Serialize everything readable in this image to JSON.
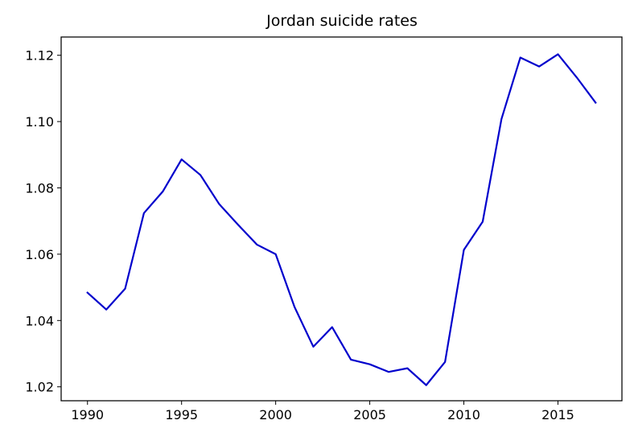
{
  "chart_data": {
    "type": "line",
    "title": "Jordan suicide rates",
    "xlabel": "",
    "ylabel": "",
    "xlim": [
      1988.6,
      2018.4
    ],
    "ylim": [
      1.0158,
      1.1255
    ],
    "x_ticks": [
      1990,
      1995,
      2000,
      2005,
      2010,
      2015
    ],
    "y_ticks": [
      1.02,
      1.04,
      1.06,
      1.08,
      1.1,
      1.12
    ],
    "y_tick_labels": [
      "1.02",
      "1.04",
      "1.06",
      "1.08",
      "1.10",
      "1.12"
    ],
    "grid": false,
    "legend": "none",
    "series": [
      {
        "color": "#0000cc",
        "x": [
          1990,
          1991,
          1992,
          1993,
          1994,
          1995,
          1996,
          1997,
          1998,
          1999,
          2000,
          2001,
          2002,
          2003,
          2004,
          2005,
          2006,
          2007,
          2008,
          2009,
          2010,
          2011,
          2012,
          2013,
          2014,
          2015,
          2016,
          2017
        ],
        "values": [
          1.0484,
          1.0433,
          1.0496,
          1.0724,
          1.0789,
          1.0886,
          1.0839,
          1.0751,
          1.0689,
          1.0629,
          1.06,
          1.0441,
          1.0321,
          1.038,
          1.0282,
          1.0268,
          1.0245,
          1.0256,
          1.0205,
          1.0275,
          1.0613,
          1.0698,
          1.1008,
          1.1193,
          1.1166,
          1.1203,
          1.1133,
          1.1057
        ]
      }
    ]
  }
}
